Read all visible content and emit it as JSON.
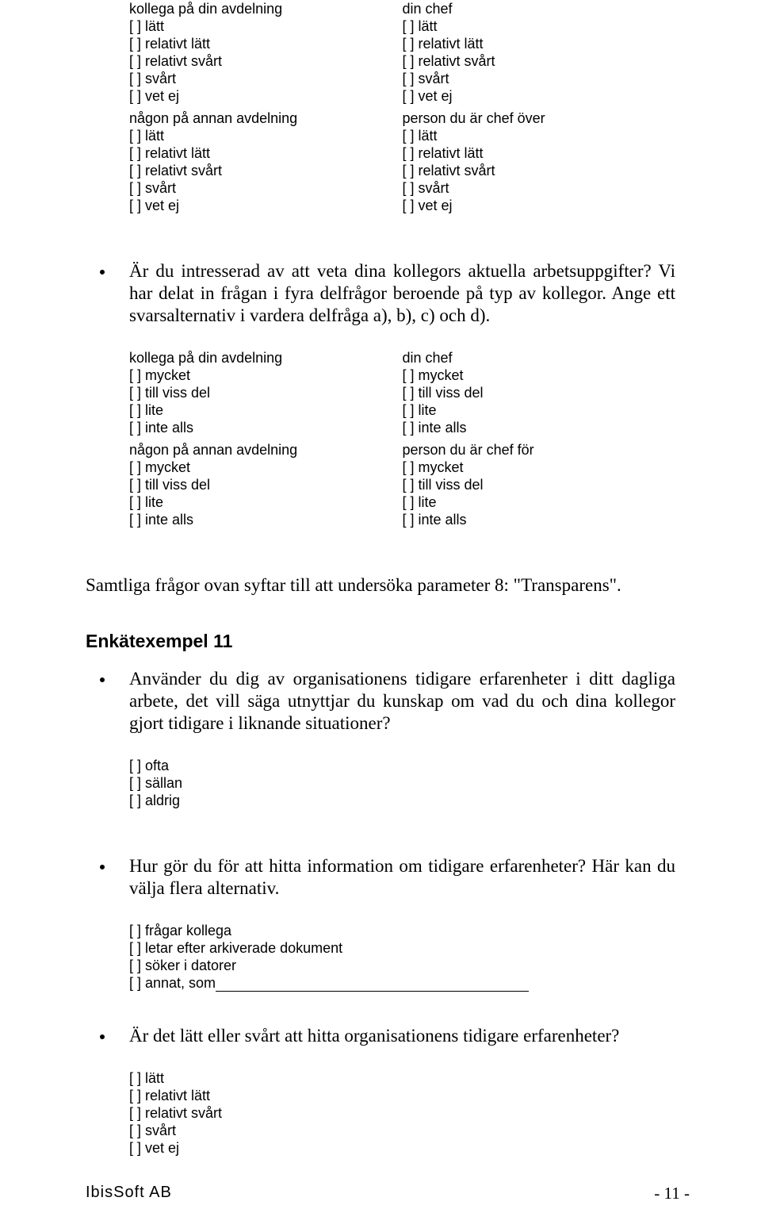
{
  "q1": {
    "a": {
      "heading": "kollega på din avdelning",
      "options": [
        "[ ] lätt",
        "[ ] relativt lätt",
        "[ ] relativt svårt",
        "[ ] svårt",
        "[ ] vet ej"
      ]
    },
    "b": {
      "heading": "din chef",
      "options": [
        "[ ] lätt",
        "[ ] relativt lätt",
        "[ ] relativt svårt",
        "[ ] svårt",
        "[ ] vet ej"
      ]
    },
    "c": {
      "heading": "någon på annan avdelning",
      "options": [
        "[ ] lätt",
        "[ ] relativt lätt",
        "[ ] relativt svårt",
        "[ ] svårt",
        "[ ] vet ej"
      ]
    },
    "d": {
      "heading": "person du är chef över",
      "options": [
        "[ ] lätt",
        "[ ] relativt lätt",
        "[ ] relativt svårt",
        "[ ] svårt",
        "[ ] vet ej"
      ]
    }
  },
  "bullet1": "Är du intresserad av att veta dina kollegors aktuella arbetsuppgifter? Vi har delat in frågan i fyra delfrågor beroende på typ av kollegor. Ange ett svarsalternativ i vardera delfråga a), b), c) och d).",
  "q2": {
    "a": {
      "heading": "kollega på din avdelning",
      "options": [
        "[ ] mycket",
        "[ ] till viss del",
        "[ ] lite",
        "[ ] inte alls"
      ]
    },
    "b": {
      "heading": "din chef",
      "options": [
        "[ ] mycket",
        "[ ] till viss del",
        "[ ] lite",
        "[ ] inte alls"
      ]
    },
    "c": {
      "heading": "någon på annan avdelning",
      "options": [
        "[ ] mycket",
        "[ ] till viss del",
        "[ ] lite",
        "[ ] inte alls"
      ]
    },
    "d": {
      "heading": "person du är chef för",
      "options": [
        "[ ] mycket",
        "[ ] till viss del",
        "[ ] lite",
        "[ ] inte alls"
      ]
    }
  },
  "para1": "Samtliga frågor ovan syftar till att undersöka parameter 8: \"Transparens\".",
  "section11": "Enkätexempel 11",
  "bullet2": "Använder du dig av organisationens tidigare erfarenheter i ditt dagliga arbete, det vill säga utnyttjar du kunskap om vad du och dina kollegor gjort tidigare i liknande situationer?",
  "q3": {
    "options": [
      "[ ] ofta",
      "[ ] sällan",
      "[ ] aldrig"
    ]
  },
  "bullet3": "Hur gör du för att hitta information om tidigare erfarenheter? Här kan du välja flera alternativ.",
  "q4": {
    "options": [
      "[ ] frågar kollega",
      "[ ] letar efter arkiverade dokument",
      "[ ] söker i datorer"
    ],
    "other_prefix": "[ ] annat, som"
  },
  "bullet4": "Är det lätt eller svårt att hitta organisationens tidigare erfarenheter?",
  "q5": {
    "options": [
      "[ ] lätt",
      "[ ] relativt lätt",
      "[ ] relativt svårt",
      "[ ] svårt",
      "[ ] vet ej"
    ]
  },
  "footer": {
    "left": "IbisSoft AB",
    "right": "- 11 -"
  }
}
